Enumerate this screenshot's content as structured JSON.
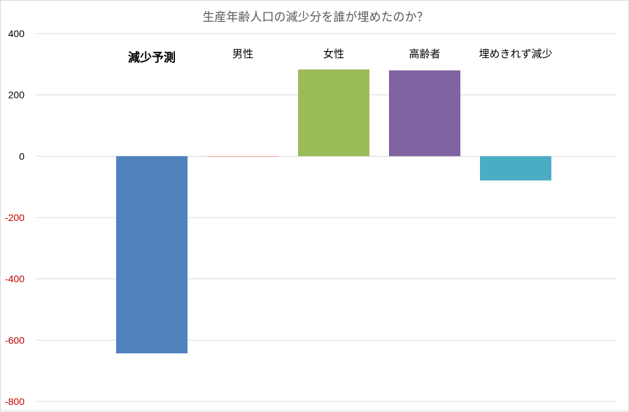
{
  "chart_data": {
    "type": "bar",
    "title": "生産年齢人口の減少分を誰が埋めたのか？",
    "categories": [
      "減少予測",
      "男性",
      "女性",
      "高齢者",
      "埋めきれず減少"
    ],
    "values": [
      -643,
      -2,
      283,
      280,
      -79
    ],
    "ylim": [
      -800,
      400
    ],
    "yticks": [
      400,
      200,
      0,
      -200,
      -400,
      -600,
      -800
    ],
    "ytick_labels": [
      "400",
      "200",
      "0",
      "-200",
      "-400",
      "-600",
      "-800"
    ],
    "grid": true,
    "xlabel": "",
    "ylabel": "",
    "colors": [
      "#4f81bd",
      "#f2a8a0",
      "#9bbb59",
      "#8064a2",
      "#4bacc6"
    ],
    "positive_tick_color": "#000000",
    "negative_tick_color": "#c00000"
  }
}
